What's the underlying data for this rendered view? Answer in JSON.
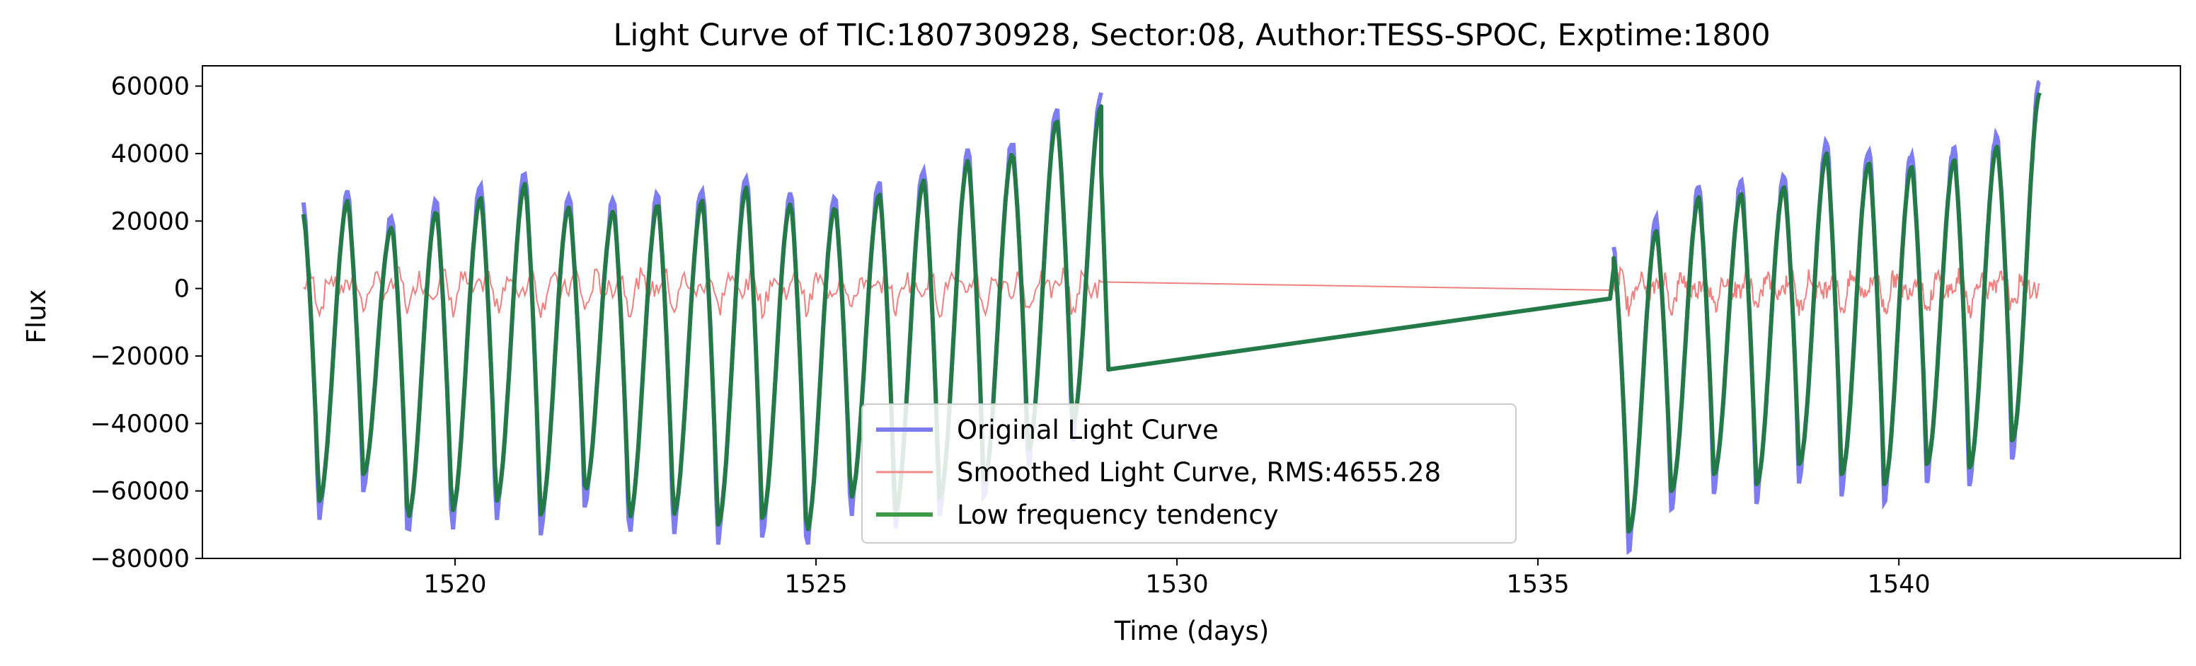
{
  "chart_data": {
    "type": "line",
    "title": "Light Curve of TIC:180730928, Sector:08, Author:TESS-SPOC, Exptime:1800",
    "xlabel": "Time (days)",
    "ylabel": "Flux",
    "xlim": [
      1516.5,
      1543.9
    ],
    "ylim": [
      -80000,
      66000
    ],
    "xticks": [
      1520,
      1525,
      1530,
      1535,
      1540
    ],
    "yticks": [
      -80000,
      -60000,
      -40000,
      -20000,
      0,
      20000,
      40000,
      60000
    ],
    "xtick_labels": [
      "1520",
      "1525",
      "1530",
      "1535",
      "1540"
    ],
    "ytick_labels": [
      "−80000",
      "−60000",
      "−40000",
      "−20000",
      "0",
      "20000",
      "40000",
      "60000"
    ],
    "grid": false,
    "legend_position": "lower-center",
    "segments": [
      {
        "t_start": 1517.9,
        "t_end": 1528.95,
        "peaks": [
          22000,
          26000,
          18000,
          23000,
          27000,
          31000,
          24000,
          23000,
          25000,
          26000,
          30000,
          25000,
          24000,
          28000,
          32000,
          38000,
          40000,
          50000,
          54000
        ],
        "troughs": [
          -63000,
          -55000,
          -68000,
          -66000,
          -63000,
          -67000,
          -60000,
          -68000,
          -67000,
          -70000,
          -68000,
          -72000,
          -62000,
          -66000,
          -62000,
          -58000,
          -48000,
          -40000
        ]
      },
      {
        "t_start": 1536.05,
        "t_end": 1541.95,
        "peaks": [
          9000,
          17000,
          27000,
          28000,
          30000,
          40000,
          37000,
          36000,
          38000,
          42000,
          58000
        ],
        "troughs": [
          -72000,
          -60000,
          -55000,
          -58000,
          -52000,
          -55000,
          -58000,
          -52000,
          -53000,
          -45000
        ]
      }
    ],
    "gap_line": {
      "x": [
        1528.95,
        1529.05,
        1536.0,
        1536.05
      ],
      "y": [
        35000,
        -24000,
        -3000,
        6000
      ]
    },
    "series": [
      {
        "name": "Original Light Curve",
        "color": "#6f6ff0",
        "opacity": 0.9,
        "width": 3
      },
      {
        "name": "Smoothed Light Curve, RMS:4655.28",
        "color": "#f08080",
        "opacity": 1.0,
        "width": 2
      },
      {
        "name": "Low frequency tendency",
        "color": "#237a47",
        "opacity": 1.0,
        "width": 3
      }
    ],
    "legend_colors": {
      "original": "#7b7bf0",
      "smoothed": "#f08a8a",
      "low_freq": "#3d9b4a"
    }
  }
}
